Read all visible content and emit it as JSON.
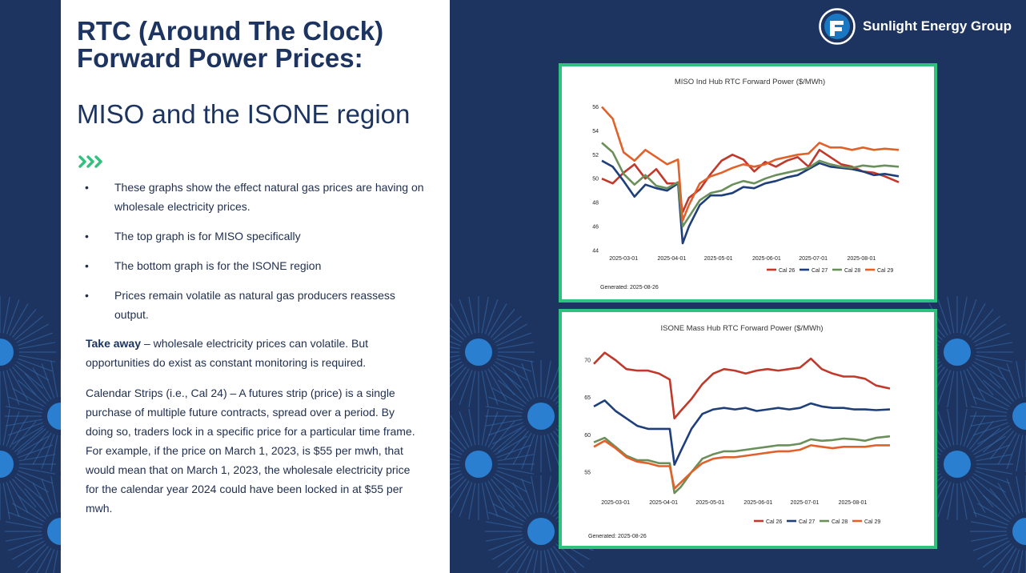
{
  "slide": {
    "title_line1": "RTC (Around The Clock)",
    "title_line2": "Forward Power Prices:",
    "subtitle": "MISO and the ISONE region",
    "bullets": [
      "These graphs show the effect natural gas prices are having on wholesale electricity prices.",
      "The top graph is for MISO specifically",
      "The bottom graph is for the ISONE region",
      "Prices remain volatile as natural gas producers reassess output."
    ],
    "takeaway_label": "Take away",
    "takeaway_text": " – wholesale electricity prices can volatile. But opportunities do exist as constant monitoring is required.",
    "calendar_text": "Calendar Strips (i.e., Cal 24) – A futures strip (price) is a single purchase of multiple future contracts, spread over a period. By doing so, traders lock in a specific price for a particular time frame.  For example, if the price on March 1, 2023, is $55 per mwh, that would mean that on March 1, 2023, the wholesale electricity price for the calendar year 2024 could have been locked in at $55 per mwh."
  },
  "brand": {
    "name": "Sunlight Energy Group"
  },
  "colors": {
    "navy": "#1d3461",
    "accent_green": "#2ec27e",
    "cal26": "#c0392b",
    "cal27": "#1f3f7a",
    "cal28": "#6a8f5a",
    "cal29": "#e0622a"
  },
  "chart_data": [
    {
      "type": "line",
      "title": "MISO Ind Hub RTC Forward Power ($/MWh)",
      "footer": "Generated: 2025-08-26",
      "xlabel": "",
      "ylabel": "",
      "x_range": [
        "2025-02-15",
        "2025-08-25"
      ],
      "x_ticks": [
        "2025-03-01",
        "2025-04-01",
        "2025-05-01",
        "2025-06-01",
        "2025-07-01",
        "2025-08-01"
      ],
      "y_ticks": [
        44,
        46,
        48,
        50,
        52,
        54,
        56
      ],
      "ylim": [
        44,
        56.3
      ],
      "x": [
        "02-15",
        "02-22",
        "03-01",
        "03-08",
        "03-15",
        "03-22",
        "03-29",
        "04-05",
        "04-08",
        "04-12",
        "04-19",
        "04-26",
        "05-03",
        "05-10",
        "05-17",
        "05-24",
        "05-31",
        "06-07",
        "06-14",
        "06-21",
        "06-28",
        "07-05",
        "07-12",
        "07-19",
        "07-26",
        "08-02",
        "08-09",
        "08-16",
        "08-25"
      ],
      "series": [
        {
          "name": "Cal 26",
          "color": "#c0392b",
          "values": [
            50.0,
            49.6,
            50.5,
            51.2,
            50.0,
            50.8,
            49.6,
            49.6,
            47.2,
            48.4,
            49.1,
            50.4,
            51.5,
            52.0,
            51.6,
            50.6,
            51.4,
            51.0,
            51.5,
            51.8,
            51.0,
            52.4,
            51.8,
            51.2,
            51.0,
            50.6,
            50.5,
            50.2,
            49.7
          ]
        },
        {
          "name": "Cal 27",
          "color": "#1f3f7a",
          "values": [
            51.5,
            51.0,
            49.8,
            48.5,
            49.5,
            49.2,
            49.0,
            49.6,
            44.6,
            46.0,
            47.8,
            48.6,
            48.6,
            48.8,
            49.3,
            49.2,
            49.6,
            49.8,
            50.1,
            50.3,
            50.8,
            51.3,
            51.0,
            50.9,
            50.8,
            50.6,
            50.3,
            50.4,
            50.2
          ]
        },
        {
          "name": "Cal 28",
          "color": "#6a8f5a",
          "values": [
            53.0,
            52.2,
            50.4,
            49.5,
            50.3,
            49.4,
            49.2,
            49.7,
            46.0,
            46.8,
            48.2,
            48.8,
            49.0,
            49.5,
            49.8,
            49.6,
            50.0,
            50.3,
            50.5,
            50.7,
            50.9,
            51.5,
            51.2,
            51.0,
            50.9,
            51.1,
            51.0,
            51.1,
            51.0
          ]
        },
        {
          "name": "Cal 29",
          "color": "#e0622a",
          "values": [
            56.0,
            55.0,
            52.2,
            51.5,
            52.4,
            51.8,
            51.2,
            51.6,
            46.5,
            47.8,
            49.6,
            50.2,
            50.5,
            50.9,
            51.2,
            51.0,
            51.2,
            51.6,
            51.8,
            52.0,
            52.1,
            53.0,
            52.6,
            52.6,
            52.4,
            52.6,
            52.4,
            52.5,
            52.4
          ]
        }
      ],
      "legend": [
        "Cal 26",
        "Cal 27",
        "Cal 28",
        "Cal 29"
      ],
      "legend_position": "bottom-right"
    },
    {
      "type": "line",
      "title": "ISONE Mass Hub RTC Forward Power ($/MWh)",
      "footer": "Generated: 2025-08-26",
      "xlabel": "",
      "ylabel": "",
      "x_range": [
        "2025-02-15",
        "2025-08-25"
      ],
      "x_ticks": [
        "2025-03-01",
        "2025-04-01",
        "2025-05-01",
        "2025-06-01",
        "2025-07-01",
        "2025-08-01"
      ],
      "y_ticks": [
        55,
        60,
        65,
        70
      ],
      "ylim": [
        52,
        71.5
      ],
      "x": [
        "02-15",
        "02-22",
        "03-01",
        "03-08",
        "03-15",
        "03-22",
        "03-29",
        "04-05",
        "04-08",
        "04-12",
        "04-19",
        "04-26",
        "05-03",
        "05-10",
        "05-17",
        "05-24",
        "05-31",
        "06-07",
        "06-14",
        "06-21",
        "06-28",
        "07-05",
        "07-12",
        "07-19",
        "07-26",
        "08-02",
        "08-09",
        "08-16",
        "08-25"
      ],
      "series": [
        {
          "name": "Cal 26",
          "color": "#c0392b",
          "values": [
            69.5,
            71.0,
            70.0,
            68.8,
            68.6,
            68.6,
            68.2,
            67.4,
            62.2,
            63.2,
            64.8,
            66.8,
            68.2,
            68.8,
            68.6,
            68.2,
            68.6,
            68.8,
            68.6,
            68.8,
            69.0,
            70.2,
            68.8,
            68.2,
            67.8,
            67.8,
            67.5,
            66.6,
            66.2
          ]
        },
        {
          "name": "Cal 27",
          "color": "#1f3f7a",
          "values": [
            63.8,
            64.6,
            63.2,
            62.2,
            61.2,
            60.8,
            60.8,
            60.8,
            56.0,
            57.8,
            60.8,
            62.8,
            63.4,
            63.6,
            63.4,
            63.6,
            63.2,
            63.4,
            63.6,
            63.4,
            63.6,
            64.2,
            63.8,
            63.6,
            63.6,
            63.4,
            63.4,
            63.3,
            63.4
          ]
        },
        {
          "name": "Cal 28",
          "color": "#6a8f5a",
          "values": [
            59.0,
            59.6,
            58.4,
            57.2,
            56.6,
            56.6,
            56.2,
            56.2,
            52.2,
            53.0,
            55.0,
            56.8,
            57.4,
            57.8,
            57.8,
            58.0,
            58.2,
            58.4,
            58.6,
            58.6,
            58.8,
            59.4,
            59.2,
            59.3,
            59.5,
            59.4,
            59.2,
            59.6,
            59.8
          ]
        },
        {
          "name": "Cal 29",
          "color": "#e0622a",
          "values": [
            58.4,
            59.2,
            58.2,
            57.0,
            56.4,
            56.2,
            55.8,
            55.8,
            52.8,
            53.6,
            55.0,
            56.2,
            56.8,
            57.0,
            57.0,
            57.2,
            57.4,
            57.6,
            57.8,
            57.8,
            58.0,
            58.6,
            58.4,
            58.2,
            58.4,
            58.4,
            58.4,
            58.6,
            58.6
          ]
        }
      ],
      "legend": [
        "Cal 26",
        "Cal 27",
        "Cal 28",
        "Cal 29"
      ],
      "legend_position": "bottom-right"
    }
  ]
}
